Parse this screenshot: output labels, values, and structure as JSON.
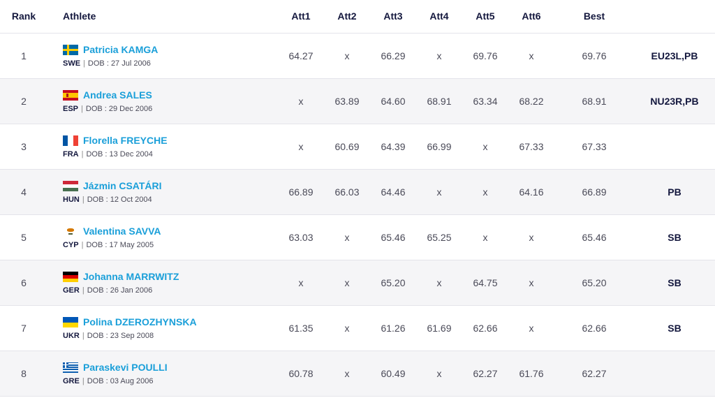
{
  "headers": {
    "rank": "Rank",
    "athlete": "Athlete",
    "att1": "Att1",
    "att2": "Att2",
    "att3": "Att3",
    "att4": "Att4",
    "att5": "Att5",
    "att6": "Att6",
    "best": "Best",
    "record": ""
  },
  "dob_prefix": "DOB :",
  "separator": "|",
  "rows": [
    {
      "rank": "1",
      "name": "Patricia KAMGA",
      "country": "SWE",
      "flag": "sweden-flag-icon",
      "dob": "27 Jul 2006",
      "att": [
        "64.27",
        "x",
        "66.29",
        "x",
        "69.76",
        "x"
      ],
      "best": "69.76",
      "record": "EU23L,PB"
    },
    {
      "rank": "2",
      "name": "Andrea SALES",
      "country": "ESP",
      "flag": "spain-flag-icon",
      "dob": "29 Dec 2006",
      "att": [
        "x",
        "63.89",
        "64.60",
        "68.91",
        "63.34",
        "68.22"
      ],
      "best": "68.91",
      "record": "NU23R,PB"
    },
    {
      "rank": "3",
      "name": "Florella FREYCHE",
      "country": "FRA",
      "flag": "france-flag-icon",
      "dob": "13 Dec 2004",
      "att": [
        "x",
        "60.69",
        "64.39",
        "66.99",
        "x",
        "67.33"
      ],
      "best": "67.33",
      "record": ""
    },
    {
      "rank": "4",
      "name": "Jázmin CSATÁRI",
      "country": "HUN",
      "flag": "hungary-flag-icon",
      "dob": "12 Oct 2004",
      "att": [
        "66.89",
        "66.03",
        "64.46",
        "x",
        "x",
        "64.16"
      ],
      "best": "66.89",
      "record": "PB"
    },
    {
      "rank": "5",
      "name": "Valentina SAVVA",
      "country": "CYP",
      "flag": "cyprus-flag-icon",
      "dob": "17 May 2005",
      "att": [
        "63.03",
        "x",
        "65.46",
        "65.25",
        "x",
        "x"
      ],
      "best": "65.46",
      "record": "SB"
    },
    {
      "rank": "6",
      "name": "Johanna MARRWITZ",
      "country": "GER",
      "flag": "germany-flag-icon",
      "dob": "26 Jan 2006",
      "att": [
        "x",
        "x",
        "65.20",
        "x",
        "64.75",
        "x"
      ],
      "best": "65.20",
      "record": "SB"
    },
    {
      "rank": "7",
      "name": "Polina DZEROZHYNSKA",
      "country": "UKR",
      "flag": "ukraine-flag-icon",
      "dob": "23 Sep 2008",
      "att": [
        "61.35",
        "x",
        "61.26",
        "61.69",
        "62.66",
        "x"
      ],
      "best": "62.66",
      "record": "SB"
    },
    {
      "rank": "8",
      "name": "Paraskevi POULLI",
      "country": "GRE",
      "flag": "greece-flag-icon",
      "dob": "03 Aug 2006",
      "att": [
        "60.78",
        "x",
        "60.49",
        "x",
        "62.27",
        "61.76"
      ],
      "best": "62.27",
      "record": ""
    }
  ],
  "colors": {
    "link": "#1a9fd9",
    "header": "#14183e",
    "row_alt": "#f5f5f7"
  }
}
